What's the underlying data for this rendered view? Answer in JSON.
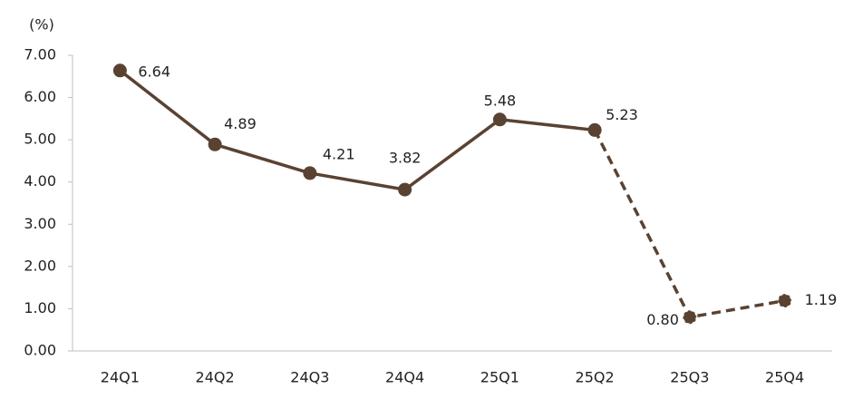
{
  "chart_data": {
    "type": "line",
    "y_unit_label": "(%)",
    "categories": [
      "24Q1",
      "24Q2",
      "24Q3",
      "24Q4",
      "25Q1",
      "25Q2",
      "25Q3",
      "25Q4"
    ],
    "series": [
      {
        "color": "#5a4232",
        "values": [
          6.64,
          4.89,
          4.21,
          3.82,
          5.48,
          5.23,
          0.8,
          1.19
        ],
        "value_labels": [
          "6.64",
          "4.89",
          "4.21",
          "3.82",
          "5.48",
          "5.23",
          "0.80",
          "1.19"
        ],
        "dashed_from": 5
      }
    ],
    "ylim": [
      0,
      7
    ],
    "yticks": [
      {
        "value": 0,
        "label": "0.00"
      },
      {
        "value": 1,
        "label": "1.00"
      },
      {
        "value": 2,
        "label": "2.00"
      },
      {
        "value": 3,
        "label": "3.00"
      },
      {
        "value": 4,
        "label": "4.00"
      },
      {
        "value": 5,
        "label": "5.00"
      },
      {
        "value": 6,
        "label": "6.00"
      },
      {
        "value": 7,
        "label": "7.00"
      }
    ],
    "grid": false
  }
}
